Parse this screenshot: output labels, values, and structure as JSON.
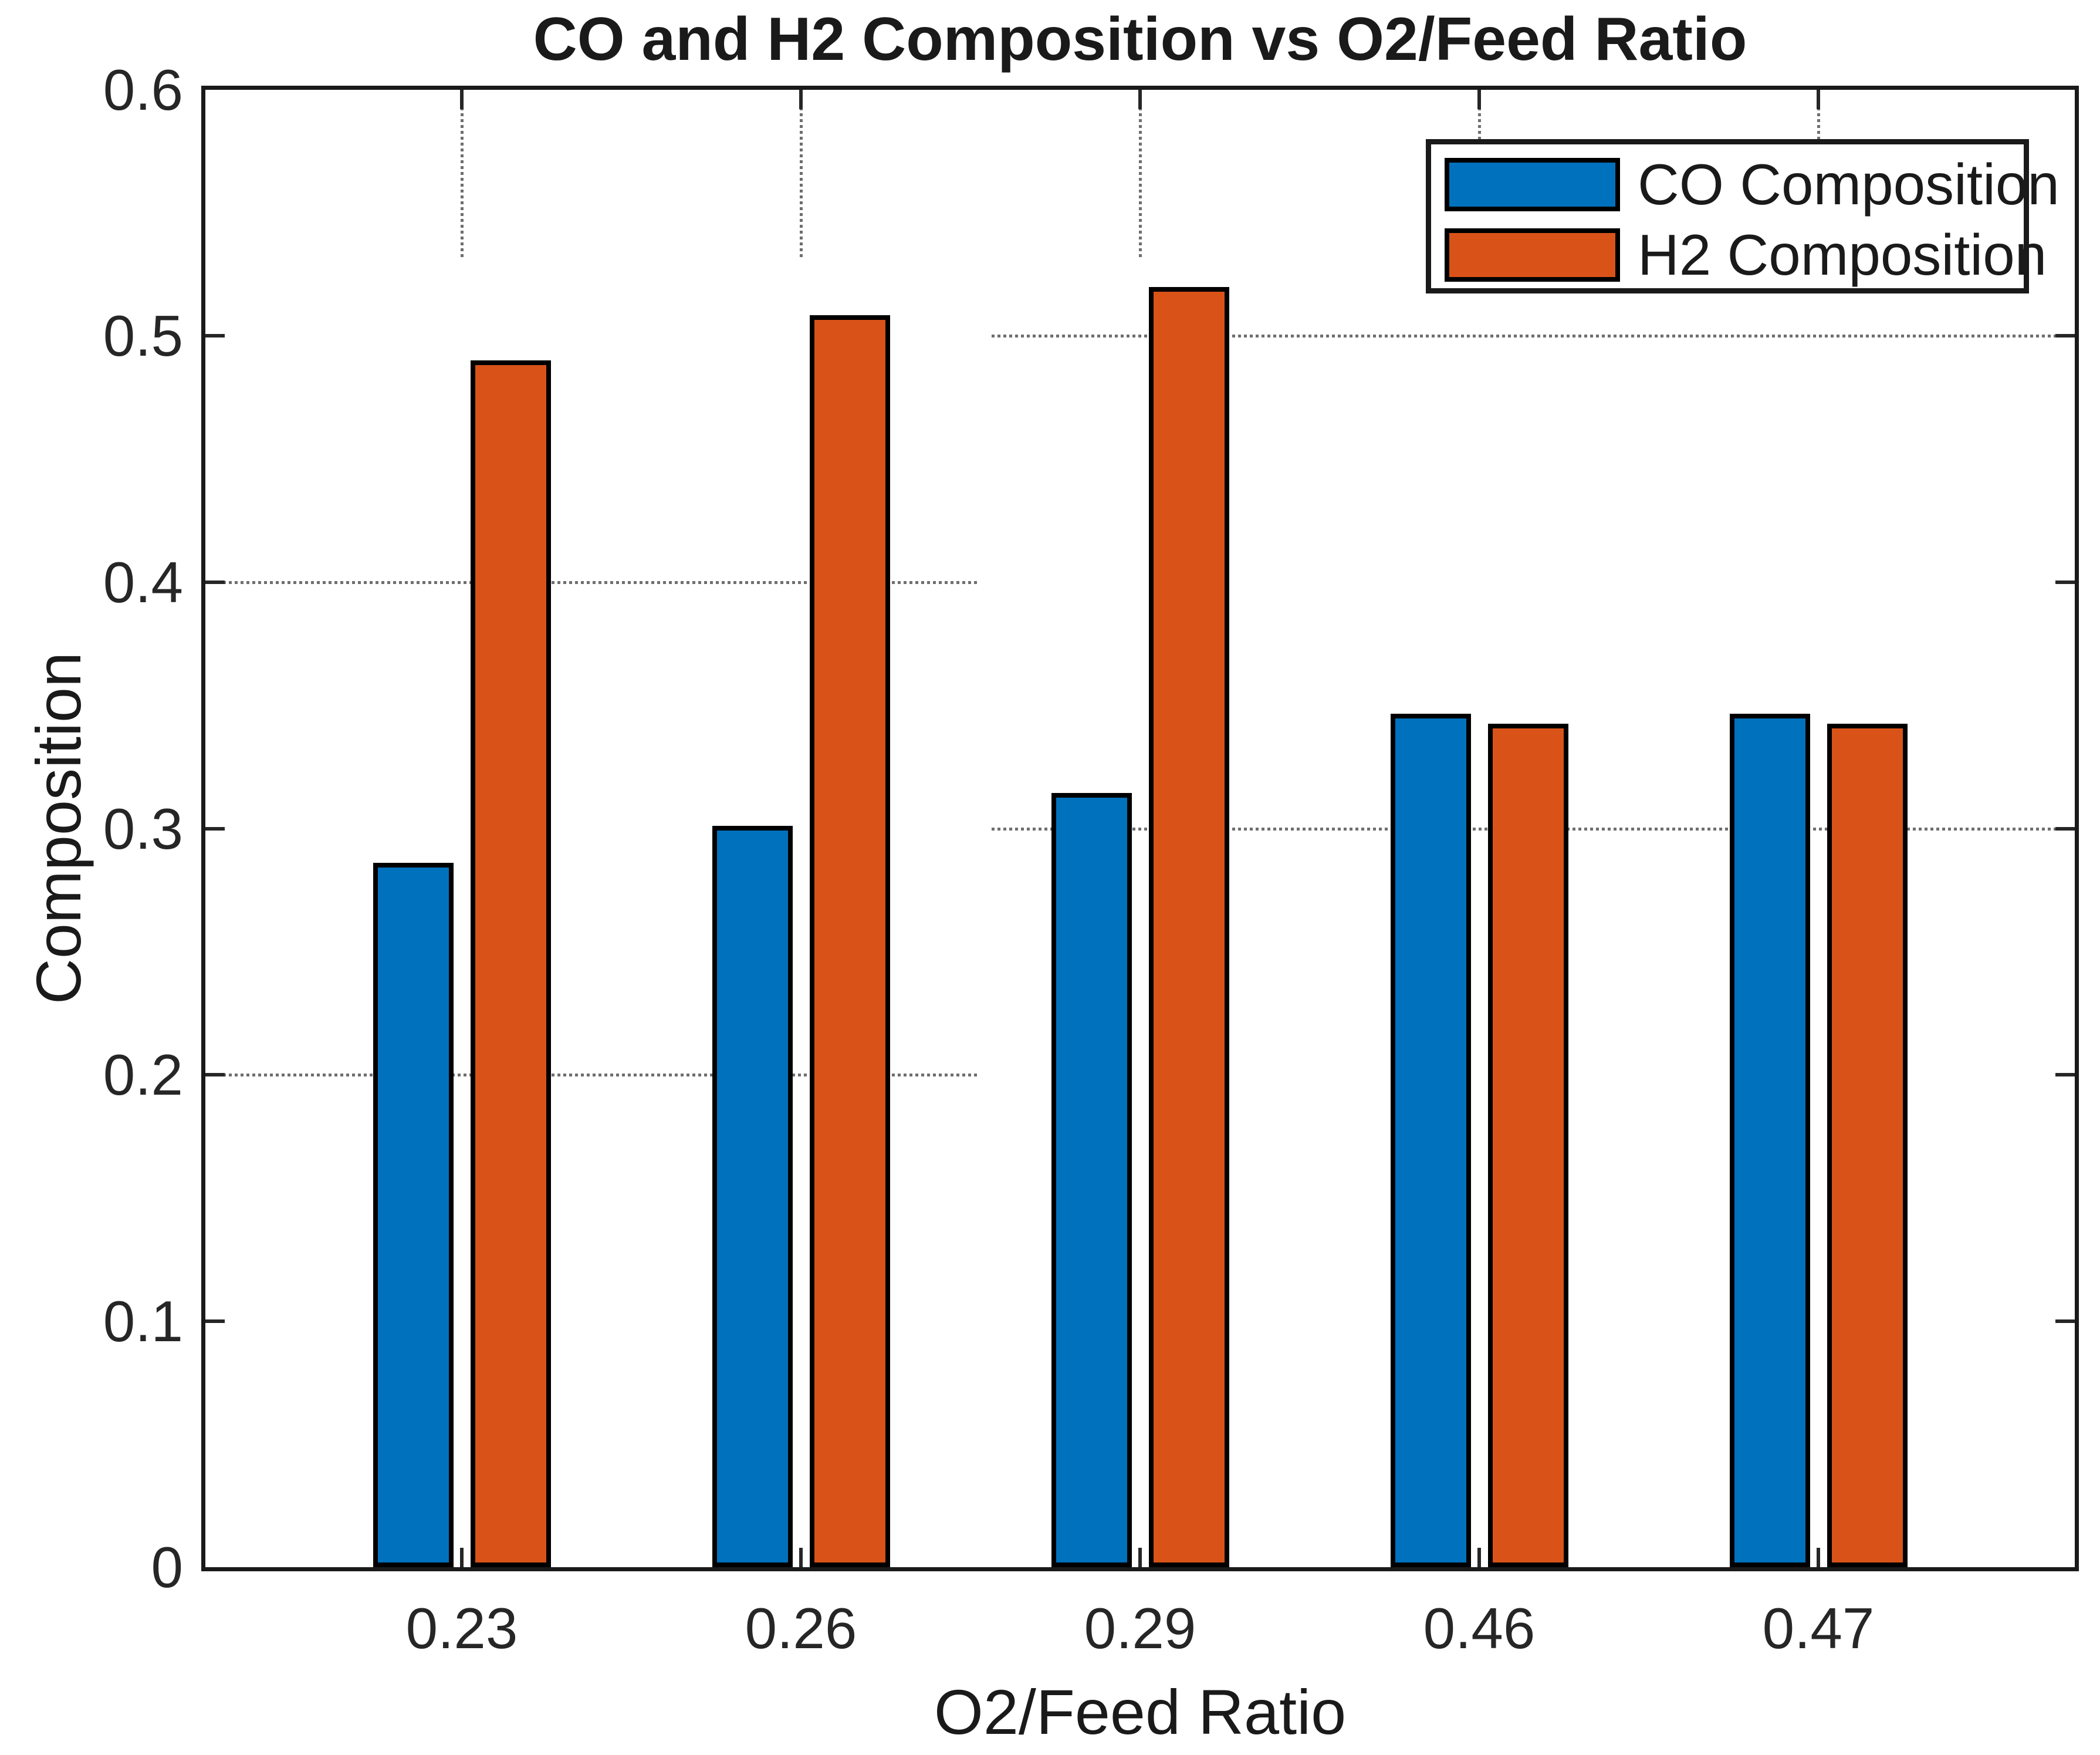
{
  "figure": {
    "title": "CO and H2 Composition vs O2/Feed Ratio",
    "xlabel": "O2/Feed Ratio",
    "ylabel": "Composition"
  },
  "legend": {
    "items": [
      {
        "label": "CO Composition",
        "color": "#0072BD"
      },
      {
        "label": "H2 Composition",
        "color": "#D95319"
      }
    ]
  },
  "chart_data": {
    "type": "bar",
    "title": "CO and H2 Composition vs O2/Feed Ratio",
    "xlabel": "O2/Feed Ratio",
    "ylabel": "Composition",
    "categories": [
      "0.23",
      "0.26",
      "0.29",
      "0.46",
      "0.47"
    ],
    "series": [
      {
        "name": "CO Composition",
        "color": "#0072BD",
        "values": [
          0.286,
          0.301,
          0.3145,
          0.3465,
          0.3465
        ]
      },
      {
        "name": "H2 Composition",
        "color": "#D95319",
        "values": [
          0.49,
          0.5085,
          0.52,
          0.3425,
          0.3425
        ]
      }
    ],
    "ylim": [
      0,
      0.6
    ],
    "yticks": [
      "0",
      "0.1",
      "0.2",
      "0.3",
      "0.4",
      "0.5",
      "0.6"
    ],
    "grid": true,
    "legend_position": "northeast"
  },
  "colors": {
    "axis": "#1a1a1a",
    "tick": "#262626",
    "grid": "#6f6f6f",
    "bar_edge": "#000000",
    "background": "#ffffff"
  }
}
